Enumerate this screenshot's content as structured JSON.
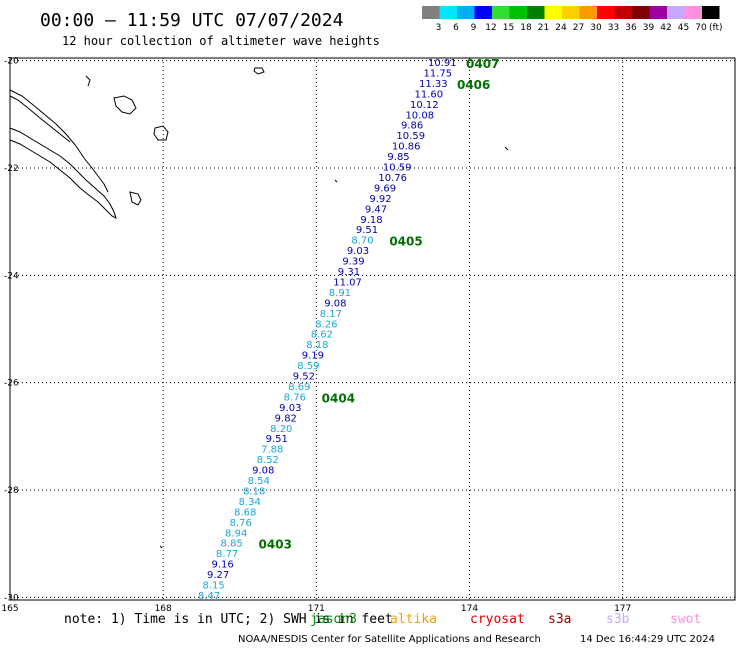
{
  "header": {
    "title": "00:00 – 11:59 UTC 07/07/2024",
    "subtitle": "12 hour collection of altimeter wave heights"
  },
  "legend": {
    "unit": "(ft)",
    "bins": [
      {
        "label": "3",
        "color": "#808080"
      },
      {
        "label": "6",
        "color": "#00e8ff"
      },
      {
        "label": "9",
        "color": "#00b0f0"
      },
      {
        "label": "12",
        "color": "#0000ff"
      },
      {
        "label": "15",
        "color": "#30e030"
      },
      {
        "label": "18",
        "color": "#00c000"
      },
      {
        "label": "21",
        "color": "#008000"
      },
      {
        "label": "24",
        "color": "#ffff00"
      },
      {
        "label": "27",
        "color": "#ffd000"
      },
      {
        "label": "30",
        "color": "#ff9900"
      },
      {
        "label": "33",
        "color": "#ff0000"
      },
      {
        "label": "36",
        "color": "#c00000"
      },
      {
        "label": "39",
        "color": "#800000"
      },
      {
        "label": "42",
        "color": "#a000a0"
      },
      {
        "label": "45",
        "color": "#c8a8ff"
      },
      {
        "label": "70",
        "color": "#ff90e0"
      },
      {
        "label": "",
        "color": "#000000"
      }
    ]
  },
  "map": {
    "lon_ticks": [
      {
        "value": 165,
        "label": "165"
      },
      {
        "value": 168,
        "label": "168"
      },
      {
        "value": 171,
        "label": "171"
      },
      {
        "value": 174,
        "label": "174"
      },
      {
        "value": 177,
        "label": "177"
      }
    ],
    "lat_ticks": [
      {
        "value": -20,
        "label": "-20"
      },
      {
        "value": -22,
        "label": "-22"
      },
      {
        "value": -24,
        "label": "-24"
      },
      {
        "value": -26,
        "label": "-26"
      },
      {
        "value": -28,
        "label": "-28"
      },
      {
        "value": -30,
        "label": "-30"
      }
    ],
    "lon_range": [
      165,
      179.2
    ],
    "lat_range": [
      -30.05,
      -19.95
    ]
  },
  "track": {
    "colors": {
      "dark": "#0000b0",
      "light": "#1aa8d8",
      "time": "#007000"
    },
    "points": [
      {
        "v": "10.91",
        "c": "dark"
      },
      {
        "v": "11.75",
        "c": "dark"
      },
      {
        "v": "11.33",
        "c": "dark"
      },
      {
        "v": "11.60",
        "c": "dark"
      },
      {
        "v": "10.12",
        "c": "dark"
      },
      {
        "v": "10.08",
        "c": "dark"
      },
      {
        "v": "9.86",
        "c": "dark"
      },
      {
        "v": "10.59",
        "c": "dark"
      },
      {
        "v": "10.86",
        "c": "dark"
      },
      {
        "v": "9.85",
        "c": "dark"
      },
      {
        "v": "10.59",
        "c": "dark"
      },
      {
        "v": "10.76",
        "c": "dark"
      },
      {
        "v": "9.69",
        "c": "dark"
      },
      {
        "v": "9.92",
        "c": "dark"
      },
      {
        "v": "9.47",
        "c": "dark"
      },
      {
        "v": "9.18",
        "c": "dark"
      },
      {
        "v": "9.51",
        "c": "dark"
      },
      {
        "v": "8.70",
        "c": "light"
      },
      {
        "v": "9.03",
        "c": "dark"
      },
      {
        "v": "9.39",
        "c": "dark"
      },
      {
        "v": "9.31",
        "c": "dark"
      },
      {
        "v": "11.07",
        "c": "dark"
      },
      {
        "v": "8.91",
        "c": "light"
      },
      {
        "v": "9.08",
        "c": "dark"
      },
      {
        "v": "8.17",
        "c": "light"
      },
      {
        "v": "8.26",
        "c": "light"
      },
      {
        "v": "8.62",
        "c": "light"
      },
      {
        "v": "8.18",
        "c": "light"
      },
      {
        "v": "9.19",
        "c": "dark"
      },
      {
        "v": "8.59",
        "c": "light"
      },
      {
        "v": "9.52",
        "c": "dark"
      },
      {
        "v": "8.69",
        "c": "light"
      },
      {
        "v": "8.76",
        "c": "light"
      },
      {
        "v": "9.03",
        "c": "dark"
      },
      {
        "v": "9.82",
        "c": "dark"
      },
      {
        "v": "8.20",
        "c": "light"
      },
      {
        "v": "9.51",
        "c": "dark"
      },
      {
        "v": "7.88",
        "c": "light"
      },
      {
        "v": "8.52",
        "c": "light"
      },
      {
        "v": "9.08",
        "c": "dark"
      },
      {
        "v": "8.54",
        "c": "light"
      },
      {
        "v": "8.18",
        "c": "light"
      },
      {
        "v": "8.34",
        "c": "light"
      },
      {
        "v": "8.68",
        "c": "light"
      },
      {
        "v": "8.76",
        "c": "light"
      },
      {
        "v": "8.94",
        "c": "light"
      },
      {
        "v": "8.85",
        "c": "light"
      },
      {
        "v": "8.77",
        "c": "light"
      },
      {
        "v": "9.16",
        "c": "dark"
      },
      {
        "v": "9.27",
        "c": "dark"
      },
      {
        "v": "8.15",
        "c": "light"
      },
      {
        "v": "8.47",
        "c": "light"
      }
    ],
    "time_labels": [
      {
        "label": "0407",
        "at": 0
      },
      {
        "label": "0406",
        "at": 2
      },
      {
        "label": "0405",
        "at": 17
      },
      {
        "label": "0404",
        "at": 32
      },
      {
        "label": "0403",
        "at": 46
      }
    ]
  },
  "footer": {
    "note": "note: 1) Time is in UTC; 2) SWH is in feet",
    "missions": [
      {
        "label": "jason3",
        "color": "#009000"
      },
      {
        "label": "altika",
        "color": "#ff9900"
      },
      {
        "label": "cryosat",
        "color": "#e00000"
      },
      {
        "label": "s3a",
        "color": "#a00000"
      },
      {
        "label": "s3b",
        "color": "#c8a8ff"
      },
      {
        "label": "swot",
        "color": "#ff90e0"
      }
    ],
    "credit": "NOAA/NESDIS Center for Satellite Applications and Research",
    "generated": "14 Dec 16:44:29 UTC 2024"
  }
}
